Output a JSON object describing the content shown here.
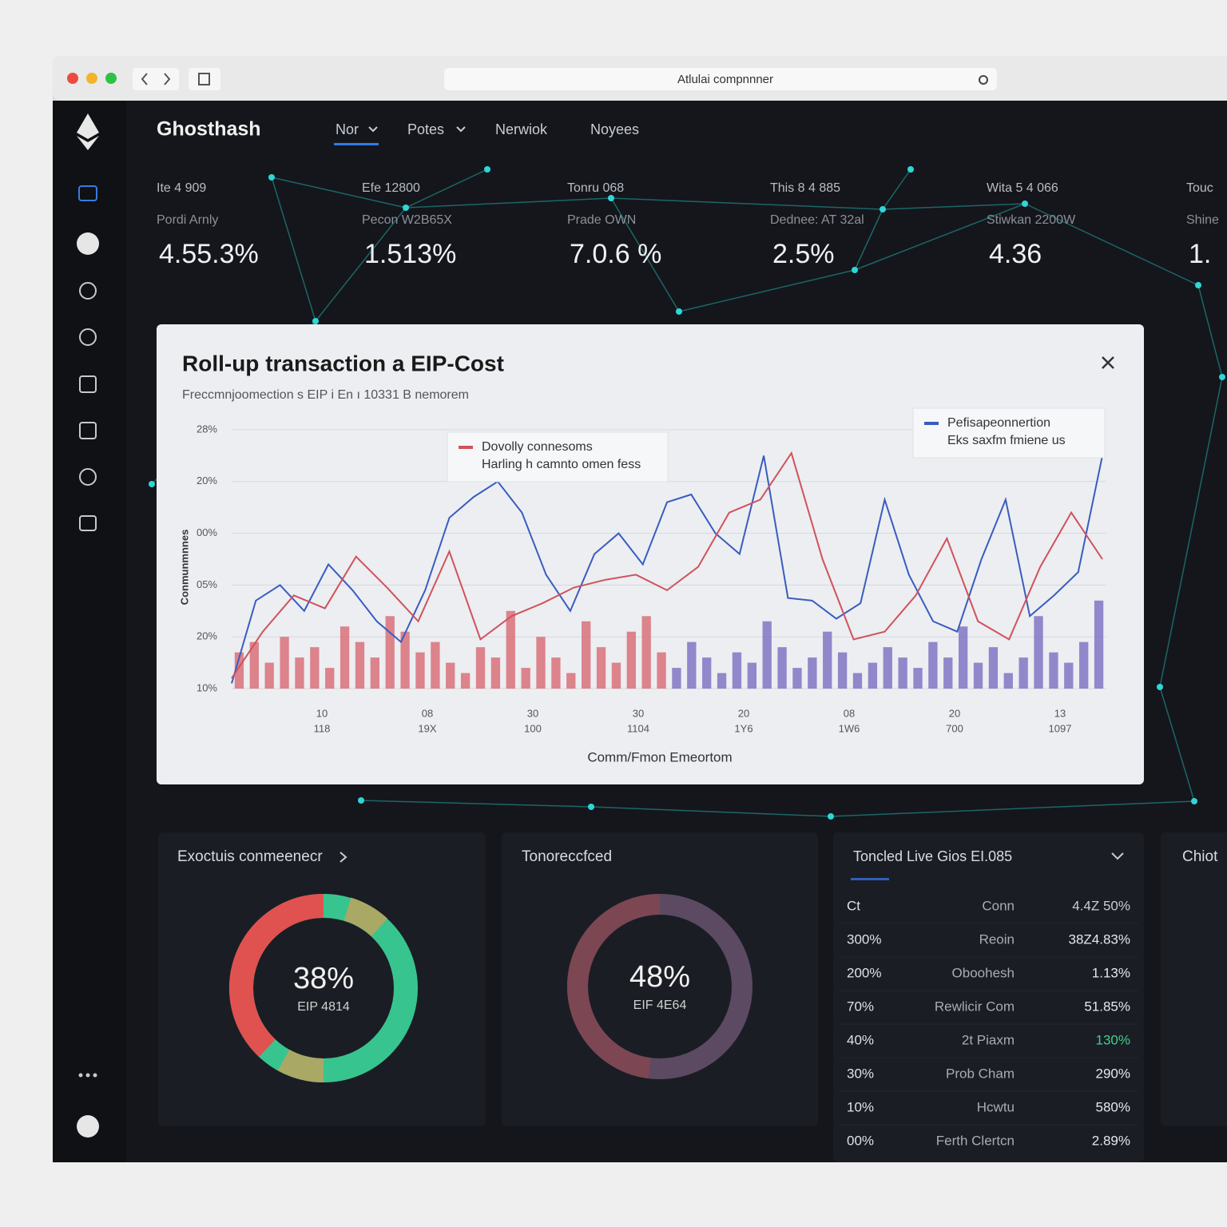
{
  "browser": {
    "url": "Atlulai compnnner"
  },
  "app": {
    "brand": "Ghosthash",
    "nav": [
      "Nor",
      "Potes",
      "Nerwiok",
      "Noyees"
    ]
  },
  "stats": [
    {
      "label": "Ite 4 909",
      "sub": "Pordi Arnly",
      "value": "4.55.3%"
    },
    {
      "label": "Efe 12800",
      "sub": "Pecon W2B65X",
      "value": "1.513%"
    },
    {
      "label": "Tonru 068",
      "sub": "Prade OWN",
      "value": "7.0.6 %"
    },
    {
      "label": "This 8 4 885",
      "sub": "Dednee: AT 32al",
      "value": "2.5%"
    },
    {
      "label": "Wita 5 4 066",
      "sub": "Stiwkan 2200W",
      "value": "4.36"
    },
    {
      "label": "Touc",
      "sub": "Shine",
      "value": "1."
    }
  ],
  "modal": {
    "title": "Roll-up transaction a EIP-Cost",
    "subtitle": "Freccmnjoomection s EIP i En ı 10331 B nemorem",
    "chart": {
      "type": "line",
      "y_label": "Conmunmnnes",
      "x_label": "Comm/Fmon Emeortom",
      "ylim": [
        0,
        5
      ],
      "yticks": [
        {
          "value": 0,
          "label": "10%"
        },
        {
          "value": 1,
          "label": "20%"
        },
        {
          "value": 2,
          "label": "05%"
        },
        {
          "value": 3,
          "label": "00%"
        },
        {
          "value": 4,
          "label": "20%"
        },
        {
          "value": 5,
          "label": "28%"
        }
      ],
      "xticks": [
        [
          "10",
          "118"
        ],
        [
          "08",
          "19X"
        ],
        [
          "30",
          "100"
        ],
        [
          "30",
          "1104"
        ],
        [
          "20",
          "1Y6"
        ],
        [
          "08",
          "1W6"
        ],
        [
          "20",
          "700"
        ],
        [
          "13",
          "1097"
        ]
      ],
      "series": [
        {
          "name": [
            "Pefisapeonnertion",
            "Eks saxfm fmiene us"
          ],
          "color": "#3a5cc0",
          "values": [
            0.1,
            1.7,
            2.0,
            1.5,
            2.4,
            1.9,
            1.3,
            0.9,
            1.9,
            3.3,
            3.7,
            4.0,
            3.4,
            2.2,
            1.5,
            2.6,
            3.0,
            2.4,
            3.6,
            3.75,
            3.0,
            2.6,
            4.5,
            1.75,
            1.7,
            1.35,
            1.65,
            3.65,
            2.2,
            1.3,
            1.1,
            2.5,
            3.65,
            1.4,
            1.8,
            2.25,
            4.5
          ]
        },
        {
          "name": [
            "Dovolly connesoms",
            "Harling h camnto omen fess"
          ],
          "color": "#d0525c",
          "values": [
            0.2,
            1.1,
            1.8,
            1.55,
            2.55,
            1.95,
            1.3,
            2.65,
            0.95,
            1.4,
            1.65,
            1.95,
            2.1,
            2.2,
            1.9,
            2.35,
            3.4,
            3.65,
            4.55,
            2.5,
            0.95,
            1.1,
            1.8,
            2.9,
            1.3,
            0.95,
            2.35,
            3.4,
            2.5
          ]
        }
      ],
      "bars": [
        {
          "color": "#d9707a",
          "values": [
            0.7,
            0.9,
            0.5,
            1.0,
            0.6,
            0.8,
            0.4,
            1.2,
            0.9,
            0.6,
            1.4,
            1.1,
            0.7,
            0.9,
            0.5,
            0.3,
            0.8,
            0.6,
            1.5,
            0.4,
            1.0,
            0.6,
            0.3,
            1.3,
            0.8,
            0.5,
            1.1,
            1.4,
            0.7
          ]
        },
        {
          "color": "#8076c4",
          "values": [
            0.4,
            0.9,
            0.6,
            0.3,
            0.7,
            0.5,
            1.3,
            0.8,
            0.4,
            0.6,
            1.1,
            0.7,
            0.3,
            0.5,
            0.8,
            0.6,
            0.4,
            0.9,
            0.6,
            1.2,
            0.5,
            0.8,
            0.3,
            0.6,
            1.4,
            0.7,
            0.5,
            0.9,
            1.7
          ]
        }
      ]
    }
  },
  "panels": [
    {
      "title": "Exoctuis conmeenecr",
      "value": 38,
      "value_label": "38%",
      "caption": "EIP 4814"
    },
    {
      "title": "Tonoreccfced",
      "value": 48,
      "value_label": "48%",
      "caption": "EIF 4E64"
    }
  ],
  "table": {
    "title": "Toncled Live Gios EI.085",
    "header": [
      "Ct",
      "Conn",
      "4.4Z 50%"
    ],
    "rows": [
      [
        "300%",
        "Reoin",
        "38Z4.83%"
      ],
      [
        "200%",
        "Oboohesh",
        "1.13%"
      ],
      [
        "70%",
        "Rewlicir Com",
        "51.85%"
      ],
      [
        "40%",
        "2t Piaxm",
        "130%"
      ],
      [
        "30%",
        "Prob Cham",
        "290%"
      ],
      [
        "10%",
        "Hcwtu",
        "580%"
      ],
      [
        "00%",
        "Ferth Clertcn",
        "2.89%"
      ]
    ]
  },
  "side_panel": {
    "title": "Chiot"
  }
}
